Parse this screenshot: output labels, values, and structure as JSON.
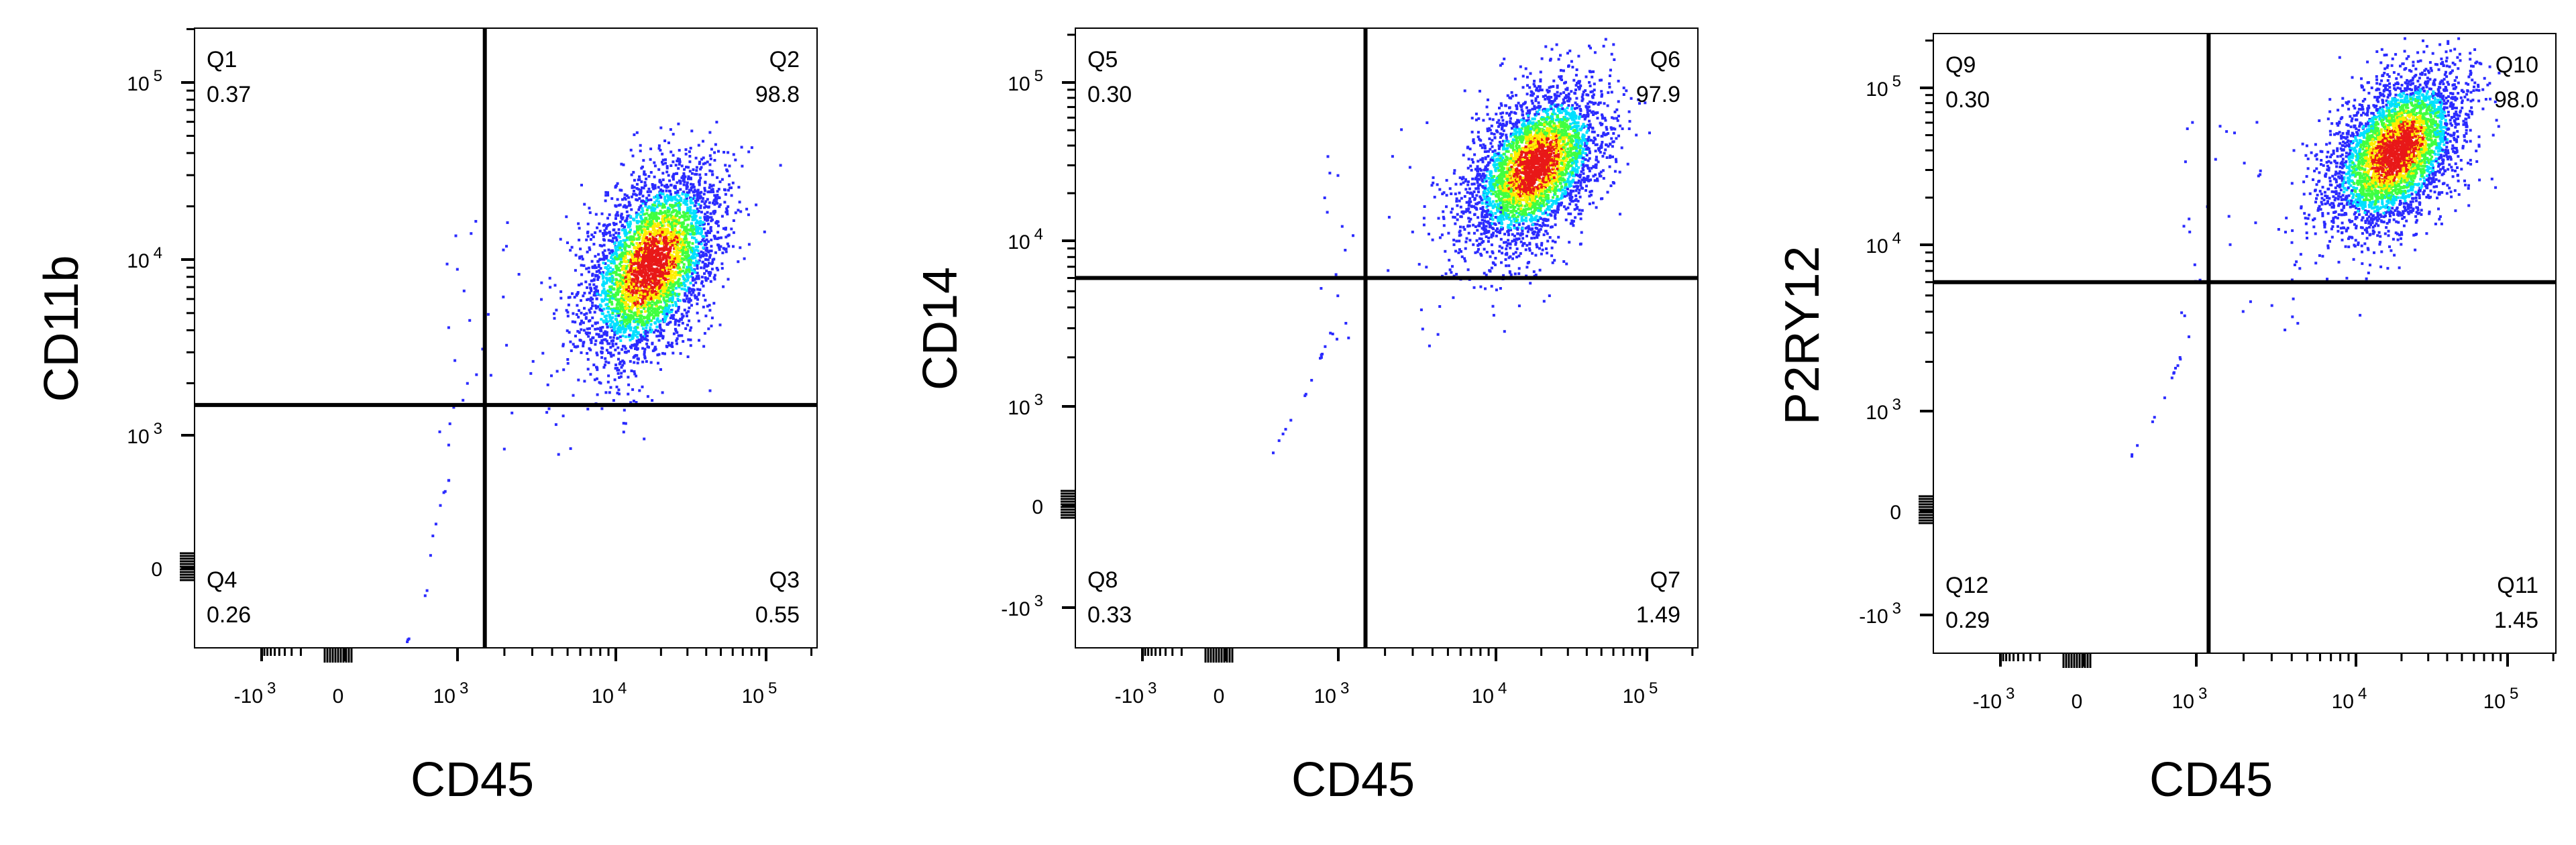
{
  "chart_data": [
    {
      "type": "scatter",
      "title": "",
      "xlabel": "CD45",
      "ylabel": "CD11b",
      "x_scale": "biexponential",
      "y_scale": "biexponential",
      "x_ticks": [
        "-10 3",
        "0",
        "10 3",
        "10 4",
        "10 5"
      ],
      "y_ticks": [
        "10 5",
        "10 4",
        "10 3",
        "0"
      ],
      "gate": {
        "x": 1500,
        "y": 1500
      },
      "quadrants": [
        {
          "name": "Q1",
          "value": "0.37",
          "position": "top-left"
        },
        {
          "name": "Q2",
          "value": "98.8",
          "position": "top-right"
        },
        {
          "name": "Q3",
          "value": "0.55",
          "position": "bottom-right"
        },
        {
          "name": "Q4",
          "value": "0.26",
          "position": "bottom-left"
        }
      ],
      "population_center": {
        "x": 17000,
        "y": 9500
      }
    },
    {
      "type": "scatter",
      "title": "",
      "xlabel": "CD45",
      "ylabel": "CD14",
      "x_scale": "biexponential",
      "y_scale": "biexponential",
      "x_ticks": [
        "-10 3",
        "0",
        "10 3",
        "10 4",
        "10 5"
      ],
      "y_ticks": [
        "10 5",
        "10 4",
        "10 3",
        "0",
        "-10 3"
      ],
      "gate": {
        "x": 1500,
        "y": 6000
      },
      "quadrants": [
        {
          "name": "Q5",
          "value": "0.30",
          "position": "top-left"
        },
        {
          "name": "Q6",
          "value": "97.9",
          "position": "top-right"
        },
        {
          "name": "Q7",
          "value": "1.49",
          "position": "bottom-right"
        },
        {
          "name": "Q8",
          "value": "0.33",
          "position": "bottom-left"
        }
      ],
      "population_center": {
        "x": 18000,
        "y": 30000
      }
    },
    {
      "type": "scatter",
      "title": "",
      "xlabel": "CD45",
      "ylabel": "P2RY12",
      "x_scale": "biexponential",
      "y_scale": "biexponential",
      "x_ticks": [
        "-10 3",
        "0",
        "10 3",
        "10 4",
        "10 5"
      ],
      "y_ticks": [
        "10 5",
        "10 4",
        "10 3",
        "0",
        "-10 3"
      ],
      "gate": {
        "x": 1200,
        "y": 6000
      },
      "quadrants": [
        {
          "name": "Q9",
          "value": "0.30",
          "position": "top-left"
        },
        {
          "name": "Q10",
          "value": "98.0",
          "position": "top-right"
        },
        {
          "name": "Q11",
          "value": "1.45",
          "position": "bottom-right"
        },
        {
          "name": "Q12",
          "value": "0.29",
          "position": "bottom-left"
        }
      ],
      "population_center": {
        "x": 18000,
        "y": 40000
      }
    }
  ],
  "colors": {
    "density_low": "#2b2bff",
    "density_mid": "#00e0ff",
    "density_mid2": "#40ff40",
    "density_high": "#ffee00",
    "density_peak": "#e81818",
    "gate_line": "#000000"
  }
}
